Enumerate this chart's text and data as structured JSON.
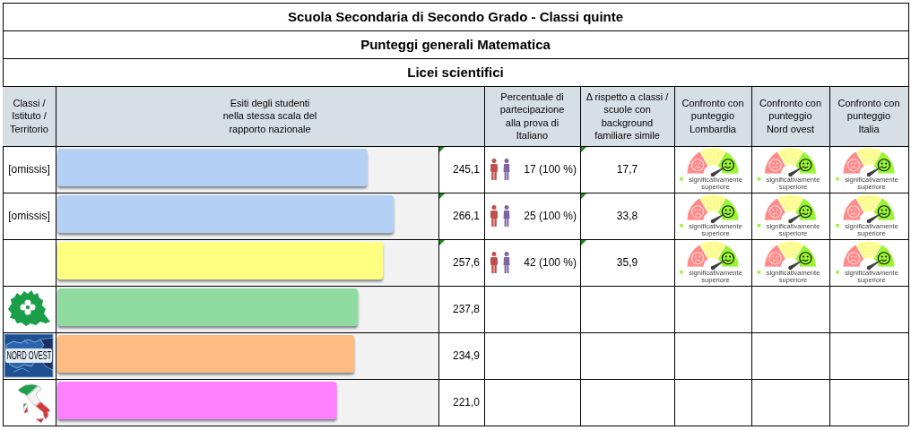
{
  "chart_data": [
    {
      "type": "bar",
      "orientation": "horizontal",
      "title": "Scuola Secondaria di Secondo Grado - Classi quinte",
      "subtitle": "Punteggi generali Matematica",
      "annotations": [
        "Licei scientifici"
      ],
      "ylabel": "Classi /\nIstituto /\nTerritorio",
      "xlabel": "Esiti degli studenti\nnella stessa scala del\nrapporto nazionale",
      "categories": [
        "[omissis]",
        "[omissis]",
        null,
        null,
        "NORD OVEST",
        null
      ],
      "values": [
        245.1,
        266.1,
        257.6,
        237.8,
        234.9,
        221.0
      ],
      "colors": [
        "#b4d0f5",
        "#b4d0f5",
        "#ffff80",
        "#90dca0",
        "#ffbb80",
        "#ff80ff"
      ],
      "xlim": [
        0,
        300
      ],
      "value_labels": [
        "245,1",
        "266,1",
        "257,6",
        "237,8",
        "234,9",
        "221,0"
      ],
      "tick_labels": "y"
    },
    {
      "type": "other",
      "categories": [
        "Percentuale di\npartecipazione\nalla prova di\nItaliano",
        "Δ rispetto a classi /\nscuole con\nbackground\nfamiliare simile",
        "Confronto con\npunteggio\nLombardia",
        "Confronto con\npunteggio\nNord ovest",
        "Confronto con\npunteggio\nItalia"
      ],
      "cell_labels": [
        [
          "17 (100 %)",
          "17,7",
          "significativamente superiore",
          "significativamente superiore",
          "significativamente superiore"
        ],
        [
          "25 (100 %)",
          "33,8",
          "significativamente superiore",
          "significativamente superiore",
          "significativamente superiore"
        ],
        [
          "42 (100 %)",
          "35,9",
          "significativamente superiore",
          "significativamente superiore",
          "significativamente superiore"
        ],
        [
          null,
          null,
          null,
          null,
          null
        ],
        [
          null,
          null,
          null,
          null,
          null
        ],
        [
          null,
          null,
          null,
          null,
          null
        ]
      ]
    }
  ]
}
